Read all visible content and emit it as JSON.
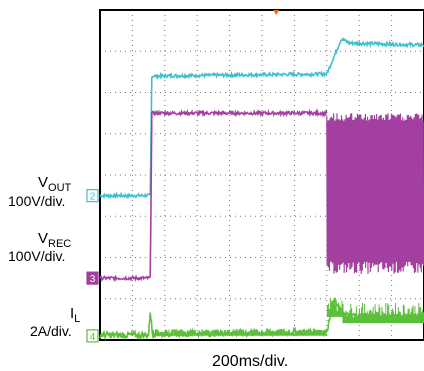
{
  "chart_data": {
    "type": "line",
    "title": "",
    "xlabel": "200ms/div.",
    "grid": true,
    "divisions": {
      "x": 10,
      "y": 8
    },
    "time_per_div_ms": 200,
    "trigger_marker": {
      "position_div": 5.5,
      "color": "#e07020"
    },
    "series": [
      {
        "name_main": "V",
        "name_sub": "OUT",
        "scale": "100V/div.",
        "channel": "2",
        "color": "#3fbfcf",
        "baseline_div": 3.5,
        "points": [
          {
            "x": 0,
            "y": 3.5
          },
          {
            "x": 1.55,
            "y": 3.5
          },
          {
            "x": 1.6,
            "y": 6.4
          },
          {
            "x": 7.0,
            "y": 6.45
          },
          {
            "x": 7.45,
            "y": 7.3
          },
          {
            "x": 7.7,
            "y": 7.2
          },
          {
            "x": 10,
            "y": 7.15
          }
        ]
      },
      {
        "name_main": "V",
        "name_sub": "REC",
        "scale": "100V/div.",
        "channel": "3",
        "color": "#a33fa0",
        "baseline_div": 1.5,
        "points": [
          {
            "x": 0,
            "y": 1.5
          },
          {
            "x": 1.55,
            "y": 1.5
          },
          {
            "x": 1.6,
            "y": 5.5
          },
          {
            "x": 7.0,
            "y": 5.5
          }
        ],
        "burst": {
          "from": 7.0,
          "to": 10,
          "low": 1.6,
          "high": 5.5
        }
      },
      {
        "name_main": "I",
        "name_sub": "L",
        "scale": "2A/div.",
        "channel": "4",
        "color": "#5bbf3a",
        "baseline_div": 0.1,
        "points": [
          {
            "x": 0,
            "y": 0.12
          },
          {
            "x": 1.5,
            "y": 0.12
          },
          {
            "x": 1.55,
            "y": 0.7
          },
          {
            "x": 1.62,
            "y": 0.15
          },
          {
            "x": 7.0,
            "y": 0.2
          },
          {
            "x": 7.2,
            "y": 1.0
          },
          {
            "x": 7.5,
            "y": 0.6
          },
          {
            "x": 10,
            "y": 0.55
          }
        ]
      }
    ]
  }
}
